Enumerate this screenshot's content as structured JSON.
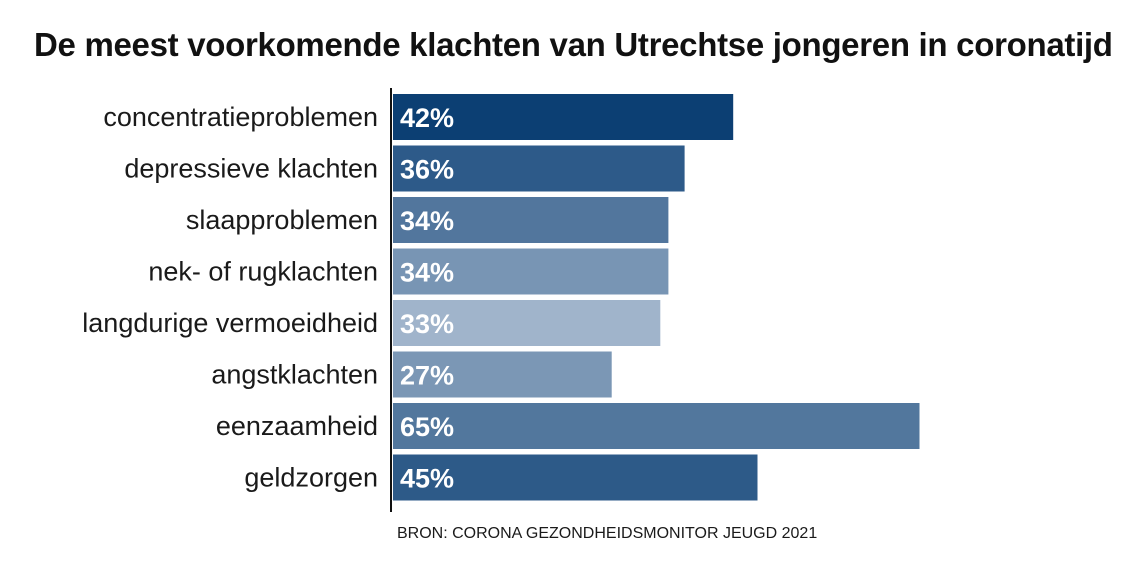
{
  "chart_data": {
    "type": "bar",
    "orientation": "horizontal",
    "title": "De meest voorkomende klachten van Utrechtse jongeren in coronatijd",
    "categories": [
      "concentratieproblemen",
      "depressieve klachten",
      "slaapproblemen",
      "nek- of rugklachten",
      "langdurige vermoeidheid",
      "angstklachten",
      "eenzaamheid",
      "geldzorgen"
    ],
    "values": [
      42,
      36,
      34,
      34,
      33,
      27,
      65,
      45
    ],
    "value_labels": [
      "42%",
      "36%",
      "34%",
      "34%",
      "33%",
      "27%",
      "65%",
      "45%"
    ],
    "bar_colors": [
      "#0c3f73",
      "#2d5a89",
      "#52769d",
      "#7895b4",
      "#a0b4cb",
      "#7b97b5",
      "#52779d",
      "#2d5a88"
    ],
    "xlim": [
      0,
      100
    ],
    "grid": false,
    "source": "BRON: CORONA GEZONDHEIDSMONITOR JEUGD 2021"
  }
}
